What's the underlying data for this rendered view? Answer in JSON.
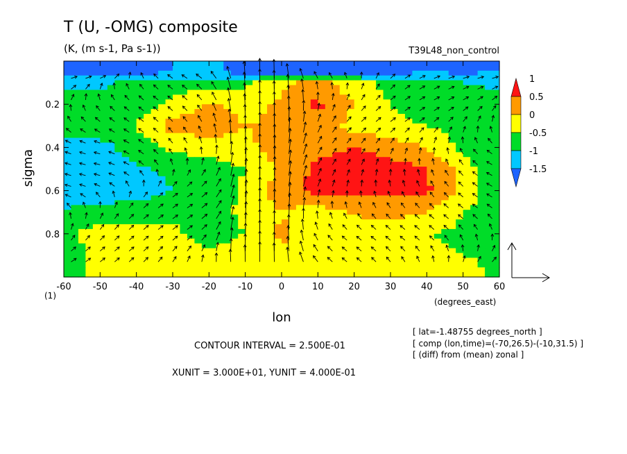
{
  "chart_data": {
    "type": "heatmap",
    "title": "T (U, -OMG) composite",
    "subtitle": "(K, (m s-1, Pa s-1))",
    "run_label": "T39L48_non_control",
    "xlabel": "lon",
    "xunit_label": "(degrees_east)",
    "ylabel": "sigma",
    "xlim": [
      -60,
      60
    ],
    "ylim": [
      1.0,
      0.0
    ],
    "x_ticks": [
      -60,
      -50,
      -40,
      -30,
      -20,
      -10,
      0,
      10,
      20,
      30,
      40,
      50,
      60
    ],
    "y_ticks": [
      0.2,
      0.4,
      0.6,
      0.8
    ],
    "corner_label": "(1)",
    "colorbar": {
      "labels": [
        "1",
        "0.5",
        "0",
        "-0.5",
        "-1",
        "-1.5"
      ],
      "levels": [
        -1.5,
        -1.0,
        -0.5,
        0,
        0.5,
        1.0
      ],
      "colors": [
        "#1e64ff",
        "#00c8ff",
        "#00dc28",
        "#ffff00",
        "#ff9a00",
        "#ff1414"
      ]
    },
    "x": [
      -60,
      -50,
      -40,
      -30,
      -20,
      -10,
      0,
      10,
      20,
      30,
      40,
      50,
      60
    ],
    "y": [
      0.05,
      0.1,
      0.2,
      0.3,
      0.4,
      0.5,
      0.6,
      0.7,
      0.8,
      0.9,
      1.0
    ],
    "z": [
      [
        -1.2,
        -1.3,
        -1.2,
        -1.0,
        -0.9,
        -1.2,
        -1.4,
        -1.5,
        -1.3,
        -1.2,
        -1.0,
        -1.1,
        -1.0
      ],
      [
        -0.6,
        -0.6,
        -0.4,
        -0.3,
        -0.2,
        -0.1,
        0.4,
        0.7,
        0.2,
        -0.2,
        -0.4,
        -0.5,
        -0.6
      ],
      [
        -0.3,
        -0.3,
        -0.2,
        0.1,
        0.6,
        0.3,
        0.6,
        1.1,
        0.5,
        0.0,
        -0.2,
        -0.3,
        -0.3
      ],
      [
        -0.3,
        -0.2,
        0.0,
        0.7,
        0.8,
        0.5,
        0.6,
        0.8,
        0.3,
        0.1,
        0.0,
        -0.1,
        -0.2
      ],
      [
        -0.6,
        -0.7,
        -0.2,
        0.1,
        0.2,
        0.4,
        0.7,
        0.9,
        1.0,
        0.8,
        0.5,
        -0.2,
        -0.4
      ],
      [
        -0.7,
        -0.9,
        -0.6,
        -0.4,
        -0.2,
        0.0,
        0.6,
        1.1,
        1.2,
        1.2,
        1.0,
        0.3,
        -0.5
      ],
      [
        -0.9,
        -0.8,
        -0.7,
        -0.5,
        -0.3,
        0.1,
        0.8,
        1.2,
        1.1,
        1.1,
        1.1,
        0.4,
        -0.4
      ],
      [
        -0.4,
        -0.3,
        -0.3,
        -0.1,
        -0.2,
        0.1,
        0.5,
        0.2,
        0.6,
        0.7,
        0.5,
        0.0,
        -0.3
      ],
      [
        -0.1,
        0.2,
        0.3,
        0.1,
        -0.2,
        0.0,
        0.6,
        0.3,
        0.1,
        0.2,
        0.0,
        -0.1,
        -0.2
      ],
      [
        -0.3,
        0.2,
        0.3,
        0.4,
        0.1,
        0.2,
        0.4,
        0.2,
        0.2,
        0.3,
        0.1,
        0.0,
        -0.1
      ],
      [
        -0.2,
        0.1,
        0.3,
        0.2,
        0.3,
        0.2,
        0.2,
        0.2,
        0.2,
        0.1,
        0.1,
        0.2,
        -0.1
      ]
    ],
    "vector_reference": true,
    "legend": "right"
  },
  "info": {
    "contour_interval": "CONTOUR INTERVAL = 2.500E-01",
    "units": "XUNIT = 3.000E+01, YUNIT = 4.000E-01",
    "lat": "[ lat=-1.48755 degrees_north ]",
    "comp": "[ comp (lon,time)=(-70,26.5)-(-10,31.5) ]",
    "diff": "[ (diff) from (mean) zonal ]"
  }
}
